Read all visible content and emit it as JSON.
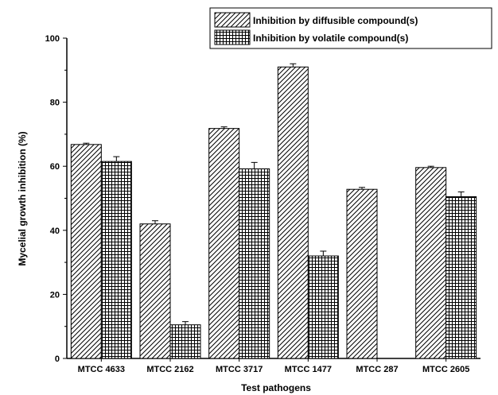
{
  "chart_data": {
    "type": "bar",
    "title": "",
    "xlabel": "Test pathogens",
    "ylabel": "Mycelial growth inhibition (%)",
    "ylim": [
      0,
      100
    ],
    "yticks": [
      0,
      20,
      40,
      60,
      80,
      100
    ],
    "grid": false,
    "legend_position": "top-right",
    "categories": [
      "MTCC 4633",
      "MTCC 2162",
      "MTCC 3717",
      "MTCC 1477",
      "MTCC 287",
      "MTCC 2605"
    ],
    "series": [
      {
        "name": "Inhibition by diffusible compound(s)",
        "pattern": "diagonal-hatch",
        "values": [
          66.8,
          42.0,
          71.8,
          91.0,
          52.8,
          59.6
        ],
        "errors": [
          0.4,
          1.0,
          0.5,
          1.0,
          0.6,
          0.4
        ]
      },
      {
        "name": "Inhibition by volatile compound(s)",
        "pattern": "grid-hatch",
        "values": [
          61.5,
          10.5,
          59.2,
          32.0,
          null,
          50.5
        ],
        "errors": [
          1.5,
          1.0,
          2.0,
          1.5,
          null,
          1.5
        ]
      }
    ]
  }
}
